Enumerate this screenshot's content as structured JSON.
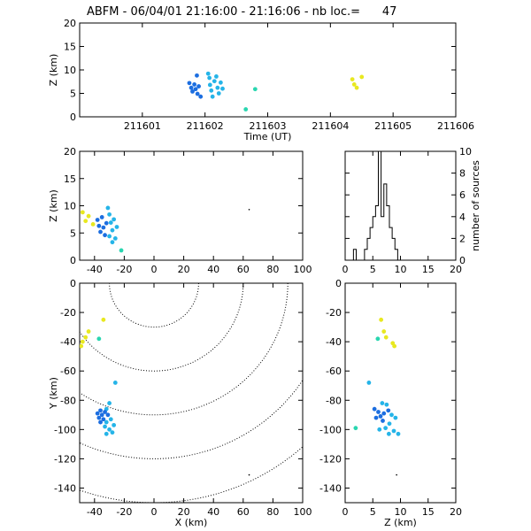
{
  "title": "ABFM - 06/04/01 21:16:00 - 21:16:06 - nb loc.=      47",
  "chart_data": [
    {
      "id": "time-height",
      "type": "scatter",
      "xlabel": "Time (UT)",
      "ylabel": "Z (km)",
      "xlim": [
        211600.0,
        211606.0
      ],
      "ylim": [
        0,
        20
      ],
      "xticks": [
        211601,
        211602,
        211603,
        211604,
        211605,
        211606
      ],
      "yticks": [
        0,
        5,
        10,
        15,
        20
      ],
      "points": [
        {
          "x": 211601.75,
          "y": 7.2,
          "c": "#1c6ee0"
        },
        {
          "x": 211601.78,
          "y": 6.2,
          "c": "#1c6ee0"
        },
        {
          "x": 211601.8,
          "y": 5.4,
          "c": "#1c6ee0"
        },
        {
          "x": 211601.83,
          "y": 6.9,
          "c": "#1c6ee0"
        },
        {
          "x": 211601.85,
          "y": 5.9,
          "c": "#1c6ee0"
        },
        {
          "x": 211601.87,
          "y": 8.8,
          "c": "#1c6ee0"
        },
        {
          "x": 211601.88,
          "y": 4.9,
          "c": "#1c6ee0"
        },
        {
          "x": 211601.9,
          "y": 6.5,
          "c": "#1c6ee0"
        },
        {
          "x": 211601.93,
          "y": 4.3,
          "c": "#1c6ee0"
        },
        {
          "x": 211602.05,
          "y": 9.2,
          "c": "#25b4e8"
        },
        {
          "x": 211602.07,
          "y": 8.3,
          "c": "#25b4e8"
        },
        {
          "x": 211602.08,
          "y": 6.8,
          "c": "#25b4e8"
        },
        {
          "x": 211602.1,
          "y": 5.6,
          "c": "#25b4e8"
        },
        {
          "x": 211602.12,
          "y": 4.3,
          "c": "#25b4e8"
        },
        {
          "x": 211602.15,
          "y": 7.6,
          "c": "#25b4e8"
        },
        {
          "x": 211602.18,
          "y": 8.6,
          "c": "#25b4e8"
        },
        {
          "x": 211602.2,
          "y": 6.2,
          "c": "#25b4e8"
        },
        {
          "x": 211602.22,
          "y": 5.0,
          "c": "#25b4e8"
        },
        {
          "x": 211602.25,
          "y": 7.3,
          "c": "#25b4e8"
        },
        {
          "x": 211602.28,
          "y": 6.0,
          "c": "#25b4e8"
        },
        {
          "x": 211602.8,
          "y": 5.9,
          "c": "#29d6b0"
        },
        {
          "x": 211602.65,
          "y": 1.6,
          "c": "#29d6b0"
        },
        {
          "x": 211604.35,
          "y": 8.0,
          "c": "#e8e820"
        },
        {
          "x": 211604.38,
          "y": 6.9,
          "c": "#e8e820"
        },
        {
          "x": 211604.42,
          "y": 6.2,
          "c": "#e8e820"
        },
        {
          "x": 211604.5,
          "y": 8.5,
          "c": "#e8e820"
        }
      ]
    },
    {
      "id": "x-z",
      "type": "scatter",
      "ylabel": "Z (km)",
      "xlim": [
        -50,
        100
      ],
      "ylim": [
        0,
        20
      ],
      "xticks": [
        -40,
        -20,
        0,
        20,
        40,
        60,
        80,
        100
      ],
      "yticks": [
        0,
        5,
        10,
        15,
        20
      ],
      "points": [
        {
          "x": -48,
          "y": 8.8,
          "c": "#e8e820"
        },
        {
          "x": -46,
          "y": 7.2,
          "c": "#e8e820"
        },
        {
          "x": -44,
          "y": 8.1,
          "c": "#e8e820"
        },
        {
          "x": -41,
          "y": 6.6,
          "c": "#e8e820"
        },
        {
          "x": -38,
          "y": 7.4,
          "c": "#1c6ee0"
        },
        {
          "x": -37,
          "y": 6.3,
          "c": "#1c6ee0"
        },
        {
          "x": -36,
          "y": 5.2,
          "c": "#1c6ee0"
        },
        {
          "x": -35,
          "y": 7.9,
          "c": "#1c6ee0"
        },
        {
          "x": -34,
          "y": 6.0,
          "c": "#1c6ee0"
        },
        {
          "x": -33,
          "y": 4.6,
          "c": "#1c6ee0"
        },
        {
          "x": -32,
          "y": 6.8,
          "c": "#1c6ee0"
        },
        {
          "x": -31,
          "y": 9.6,
          "c": "#25b4e8"
        },
        {
          "x": -30,
          "y": 8.4,
          "c": "#25b4e8"
        },
        {
          "x": -29,
          "y": 6.9,
          "c": "#25b4e8"
        },
        {
          "x": -28,
          "y": 5.5,
          "c": "#25b4e8"
        },
        {
          "x": -30,
          "y": 4.4,
          "c": "#25b4e8"
        },
        {
          "x": -27,
          "y": 7.5,
          "c": "#25b4e8"
        },
        {
          "x": -26,
          "y": 4.0,
          "c": "#25b4e8"
        },
        {
          "x": -25,
          "y": 6.1,
          "c": "#25b4e8"
        },
        {
          "x": -28,
          "y": 3.3,
          "c": "#25b4e8"
        },
        {
          "x": -22,
          "y": 1.8,
          "c": "#29d6b0"
        },
        {
          "x": 64,
          "y": 9.3,
          "c": "#000000"
        }
      ]
    },
    {
      "id": "histogram",
      "type": "bar",
      "ylabel": "number of sources",
      "xlim": [
        0,
        20
      ],
      "ylim": [
        0,
        10
      ],
      "xticks": [
        0,
        5,
        10,
        15,
        20
      ],
      "yticks": [
        0,
        2,
        4,
        6,
        8,
        10
      ],
      "bins": [
        {
          "x0": 1.5,
          "x1": 2.0,
          "v": 1
        },
        {
          "x0": 2.0,
          "x1": 2.5,
          "v": 0
        },
        {
          "x0": 2.5,
          "x1": 3.0,
          "v": 0
        },
        {
          "x0": 3.0,
          "x1": 3.5,
          "v": 0
        },
        {
          "x0": 3.5,
          "x1": 4.0,
          "v": 1
        },
        {
          "x0": 4.0,
          "x1": 4.5,
          "v": 2
        },
        {
          "x0": 4.5,
          "x1": 5.0,
          "v": 3
        },
        {
          "x0": 5.0,
          "x1": 5.5,
          "v": 4
        },
        {
          "x0": 5.5,
          "x1": 6.0,
          "v": 5
        },
        {
          "x0": 6.0,
          "x1": 6.5,
          "v": 10
        },
        {
          "x0": 6.5,
          "x1": 7.0,
          "v": 4
        },
        {
          "x0": 7.0,
          "x1": 7.5,
          "v": 7
        },
        {
          "x0": 7.5,
          "x1": 8.0,
          "v": 5
        },
        {
          "x0": 8.0,
          "x1": 8.5,
          "v": 3
        },
        {
          "x0": 8.5,
          "x1": 9.0,
          "v": 2
        },
        {
          "x0": 9.0,
          "x1": 9.5,
          "v": 1
        },
        {
          "x0": 9.5,
          "x1": 10.0,
          "v": 0
        }
      ]
    },
    {
      "id": "x-y",
      "type": "scatter",
      "xlabel": "X (km)",
      "ylabel": "Y (km)",
      "xlim": [
        -50,
        100
      ],
      "ylim": [
        -150,
        0
      ],
      "xticks": [
        -40,
        -20,
        0,
        20,
        40,
        60,
        80,
        100
      ],
      "yticks": [
        -140,
        -120,
        -100,
        -80,
        -60,
        -40,
        -20,
        0
      ],
      "range_rings_km": [
        30,
        60,
        90,
        120,
        150
      ],
      "range_center": [
        0,
        0
      ],
      "points": [
        {
          "x": -34,
          "y": -25,
          "c": "#e8e820"
        },
        {
          "x": -44,
          "y": -33,
          "c": "#e8e820"
        },
        {
          "x": -46,
          "y": -37,
          "c": "#e8e820"
        },
        {
          "x": -48,
          "y": -40,
          "c": "#e8e820"
        },
        {
          "x": -49,
          "y": -43,
          "c": "#e8e820"
        },
        {
          "x": -37,
          "y": -38,
          "c": "#29d6b0"
        },
        {
          "x": -26,
          "y": -68,
          "c": "#25b4e8"
        },
        {
          "x": -30,
          "y": -82,
          "c": "#25b4e8"
        },
        {
          "x": -32,
          "y": -86,
          "c": "#25b4e8"
        },
        {
          "x": -36,
          "y": -87,
          "c": "#1c6ee0"
        },
        {
          "x": -38,
          "y": -89,
          "c": "#1c6ee0"
        },
        {
          "x": -35,
          "y": -90,
          "c": "#1c6ee0"
        },
        {
          "x": -33,
          "y": -88,
          "c": "#1c6ee0"
        },
        {
          "x": -37,
          "y": -92,
          "c": "#1c6ee0"
        },
        {
          "x": -34,
          "y": -93,
          "c": "#1c6ee0"
        },
        {
          "x": -31,
          "y": -90,
          "c": "#1c6ee0"
        },
        {
          "x": -36,
          "y": -95,
          "c": "#1c6ee0"
        },
        {
          "x": -32,
          "y": -95,
          "c": "#25b4e8"
        },
        {
          "x": -29,
          "y": -93,
          "c": "#25b4e8"
        },
        {
          "x": -33,
          "y": -98,
          "c": "#25b4e8"
        },
        {
          "x": -30,
          "y": -100,
          "c": "#25b4e8"
        },
        {
          "x": -28,
          "y": -102,
          "c": "#25b4e8"
        },
        {
          "x": -32,
          "y": -103,
          "c": "#25b4e8"
        },
        {
          "x": -27,
          "y": -97,
          "c": "#25b4e8"
        },
        {
          "x": 64,
          "y": -131,
          "c": "#000000"
        }
      ]
    },
    {
      "id": "z-y",
      "type": "scatter",
      "xlabel": "Z (km)",
      "xlim": [
        0,
        20
      ],
      "ylim": [
        -150,
        0
      ],
      "xticks": [
        0,
        5,
        10,
        15,
        20
      ],
      "yticks": [
        -140,
        -120,
        -100,
        -80,
        -60,
        -40,
        -20,
        0
      ],
      "points": [
        {
          "x": 6.5,
          "y": -25,
          "c": "#e8e820"
        },
        {
          "x": 7.0,
          "y": -33,
          "c": "#e8e820"
        },
        {
          "x": 7.4,
          "y": -37,
          "c": "#e8e820"
        },
        {
          "x": 8.6,
          "y": -41,
          "c": "#e8e820"
        },
        {
          "x": 8.9,
          "y": -43,
          "c": "#e8e820"
        },
        {
          "x": 5.9,
          "y": -38,
          "c": "#29d6b0"
        },
        {
          "x": 4.3,
          "y": -68,
          "c": "#25b4e8"
        },
        {
          "x": 6.7,
          "y": -82,
          "c": "#25b4e8"
        },
        {
          "x": 7.5,
          "y": -83,
          "c": "#25b4e8"
        },
        {
          "x": 5.3,
          "y": -86,
          "c": "#1c6ee0"
        },
        {
          "x": 6.0,
          "y": -88,
          "c": "#1c6ee0"
        },
        {
          "x": 6.4,
          "y": -91,
          "c": "#1c6ee0"
        },
        {
          "x": 5.6,
          "y": -92,
          "c": "#1c6ee0"
        },
        {
          "x": 7.0,
          "y": -89,
          "c": "#1c6ee0"
        },
        {
          "x": 7.8,
          "y": -87,
          "c": "#1c6ee0"
        },
        {
          "x": 6.8,
          "y": -94,
          "c": "#1c6ee0"
        },
        {
          "x": 8.4,
          "y": -90,
          "c": "#25b4e8"
        },
        {
          "x": 9.1,
          "y": -92,
          "c": "#25b4e8"
        },
        {
          "x": 8.0,
          "y": -96,
          "c": "#25b4e8"
        },
        {
          "x": 7.3,
          "y": -99,
          "c": "#25b4e8"
        },
        {
          "x": 8.8,
          "y": -101,
          "c": "#25b4e8"
        },
        {
          "x": 9.6,
          "y": -103,
          "c": "#25b4e8"
        },
        {
          "x": 6.2,
          "y": -100,
          "c": "#25b4e8"
        },
        {
          "x": 7.9,
          "y": -103,
          "c": "#25b4e8"
        },
        {
          "x": 1.9,
          "y": -99,
          "c": "#29d6b0"
        },
        {
          "x": 9.3,
          "y": -131,
          "c": "#000000"
        }
      ]
    }
  ]
}
